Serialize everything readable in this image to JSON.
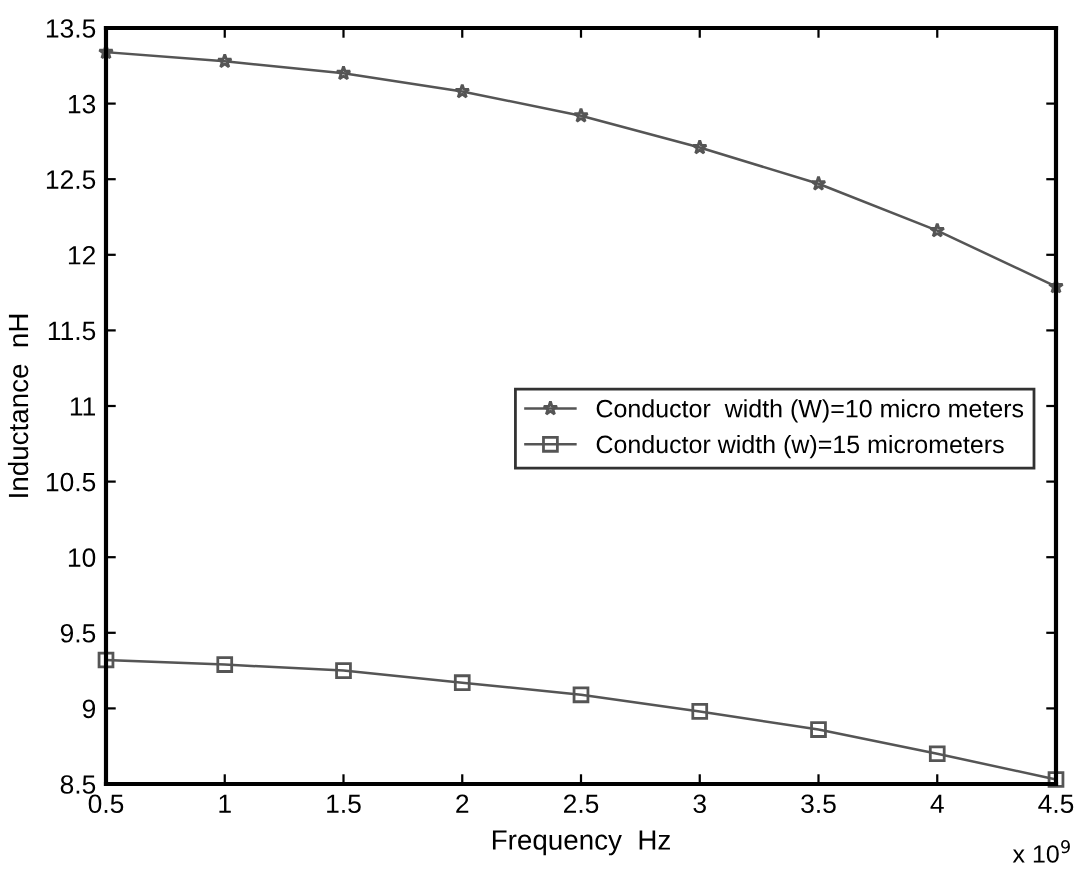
{
  "chart_data": {
    "type": "line",
    "xlabel": "Frequency  Hz",
    "ylabel": "Inductance  nH",
    "x": [
      0.5,
      1,
      1.5,
      2,
      2.5,
      3,
      3.5,
      4,
      4.5
    ],
    "series": [
      {
        "name": "Conductor  width (W)=10 micro meters",
        "color": "#555555",
        "marker": "star",
        "values": [
          13.34,
          13.28,
          13.2,
          13.08,
          12.92,
          12.71,
          12.47,
          12.16,
          11.79
        ]
      },
      {
        "name": "Conductor width (w)=15 micrometers",
        "color": "#555555",
        "marker": "square",
        "values": [
          9.32,
          9.29,
          9.25,
          9.17,
          9.09,
          8.98,
          8.86,
          8.7,
          8.53
        ]
      }
    ],
    "xlim": [
      0.5,
      4.5
    ],
    "xticks": [
      0.5,
      1,
      1.5,
      2,
      2.5,
      3,
      3.5,
      4,
      4.5
    ],
    "ylim": [
      8.5,
      13.5
    ],
    "yticks": [
      8.5,
      9,
      9.5,
      10,
      10.5,
      11,
      11.5,
      12,
      12.5,
      13,
      13.5
    ],
    "annotations": [
      "x 10$^{9}$"
    ],
    "grid": false,
    "legend": "right",
    "line_style": "solid"
  }
}
